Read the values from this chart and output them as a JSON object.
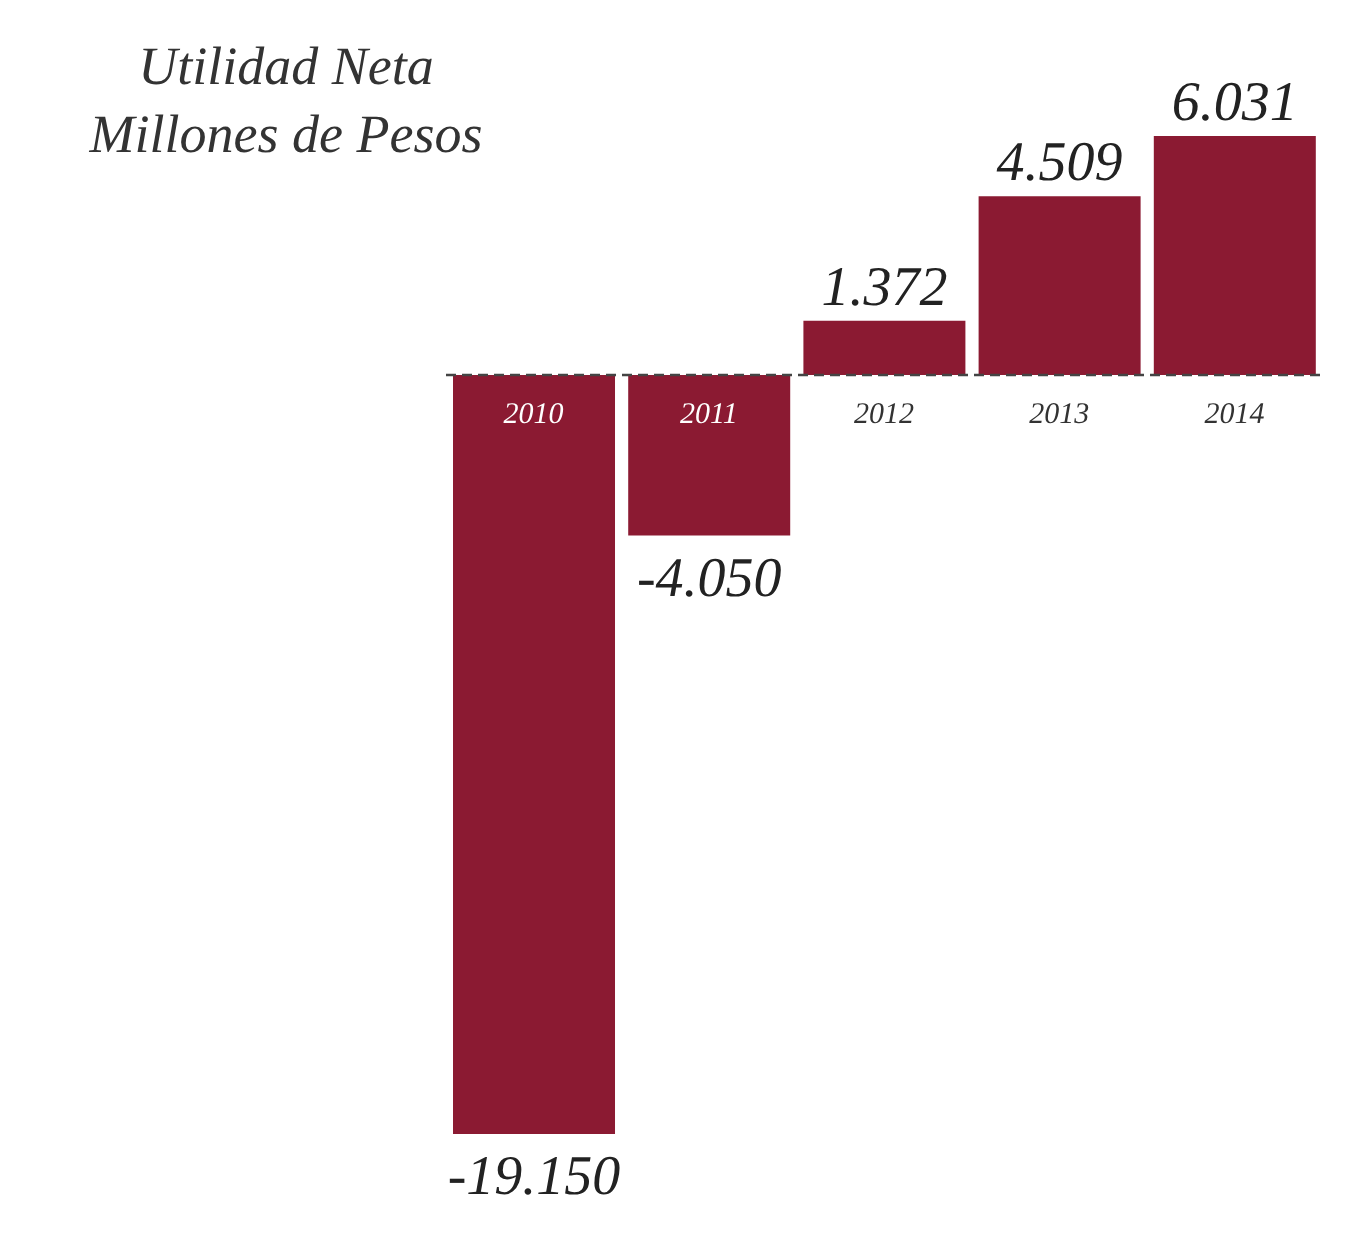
{
  "chart_data": {
    "type": "bar",
    "title": "Utilidad Neta",
    "subtitle": "Millones de Pesos",
    "categories": [
      "2010",
      "2011",
      "2012",
      "2013",
      "2014"
    ],
    "values": [
      -19150,
      -4050,
      1372,
      4509,
      6031
    ],
    "value_labels": [
      "-19.150",
      "-4.050",
      "1.372",
      "4.509",
      "6.031"
    ],
    "color": "#8b1a32",
    "ref_lines": [
      {
        "axis": "y",
        "value": 0,
        "line_style": "dashed",
        "color": "#444444"
      }
    ]
  }
}
